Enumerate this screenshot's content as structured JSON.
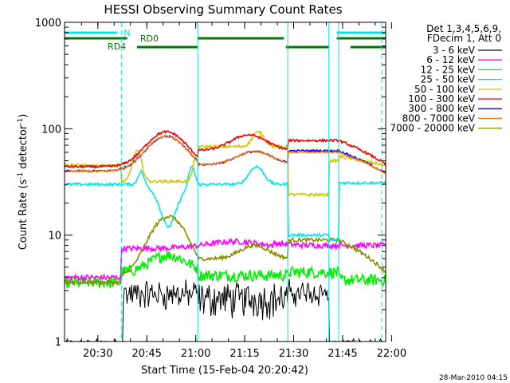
{
  "chart_data": {
    "type": "line",
    "title": "HESSI Observing Summary Count Rates",
    "xlabel": "Start Time (15-Feb-04 20:20:42)",
    "ylabel_main": "Count Rate (s",
    "ylabel_sup1": "-1",
    "ylabel_mid": " detector",
    "ylabel_sup2": "-1",
    "ylabel_end": ")",
    "y_scale": "log",
    "ylim": [
      1,
      1000
    ],
    "x_range_minutes": [
      20.33,
      21.97
    ],
    "y_ticks": [
      {
        "v": 1,
        "label": "1"
      },
      {
        "v": 10,
        "label": "10"
      },
      {
        "v": 100,
        "label": "100"
      },
      {
        "v": 1000,
        "label": "1000"
      }
    ],
    "x_ticks": [
      {
        "t": 20.5,
        "label": "20:30"
      },
      {
        "t": 20.75,
        "label": "20:45"
      },
      {
        "t": 21.0,
        "label": "21:00"
      },
      {
        "t": 21.25,
        "label": "21:15"
      },
      {
        "t": 21.5,
        "label": "21:30"
      },
      {
        "t": 21.75,
        "label": "21:45"
      },
      {
        "t": 22.0,
        "label": "22:00"
      }
    ],
    "legend_header": [
      "Det 1,3,4,5,6,9,",
      "FDecim 1, Att 0"
    ],
    "legend_placement": "right",
    "timestamp": "28-Mar-2010 04:15",
    "annotations": {
      "night_label": "N",
      "rd0_label": "RD0",
      "rd4_label": "RD4",
      "night_segments": [
        [
          20.33,
          20.6
        ],
        [
          21.72,
          21.97
        ]
      ],
      "rd0_segments": [
        [
          20.33,
          20.65
        ],
        [
          21.01,
          21.45
        ],
        [
          21.72,
          21.97
        ]
      ],
      "rd4_segments": [
        [
          20.7,
          21.01
        ],
        [
          21.46,
          21.68
        ],
        [
          21.79,
          21.97
        ]
      ],
      "solid_lines": [
        21.01,
        21.47,
        21.68,
        21.73
      ],
      "dashed_lines": [
        20.62,
        21.95
      ]
    },
    "series": [
      {
        "name": "3 - 6 keV",
        "color": "#000000"
      },
      {
        "name": "6 - 12 keV",
        "color": "#ff00ff"
      },
      {
        "name": "12 - 25 keV",
        "color": "#00ee00"
      },
      {
        "name": "25 - 50 keV",
        "color": "#00e5e5"
      },
      {
        "name": "50 - 100 keV",
        "color": "#d2c800"
      },
      {
        "name": "100 - 300 keV",
        "color": "#ee0000"
      },
      {
        "name": "300 - 800 keV",
        "color": "#0000ff"
      },
      {
        "name": "800 - 7000 keV",
        "color": "#ff8000"
      },
      {
        "name": "7000 - 20000 keV",
        "color": "#8b8b00"
      }
    ]
  }
}
